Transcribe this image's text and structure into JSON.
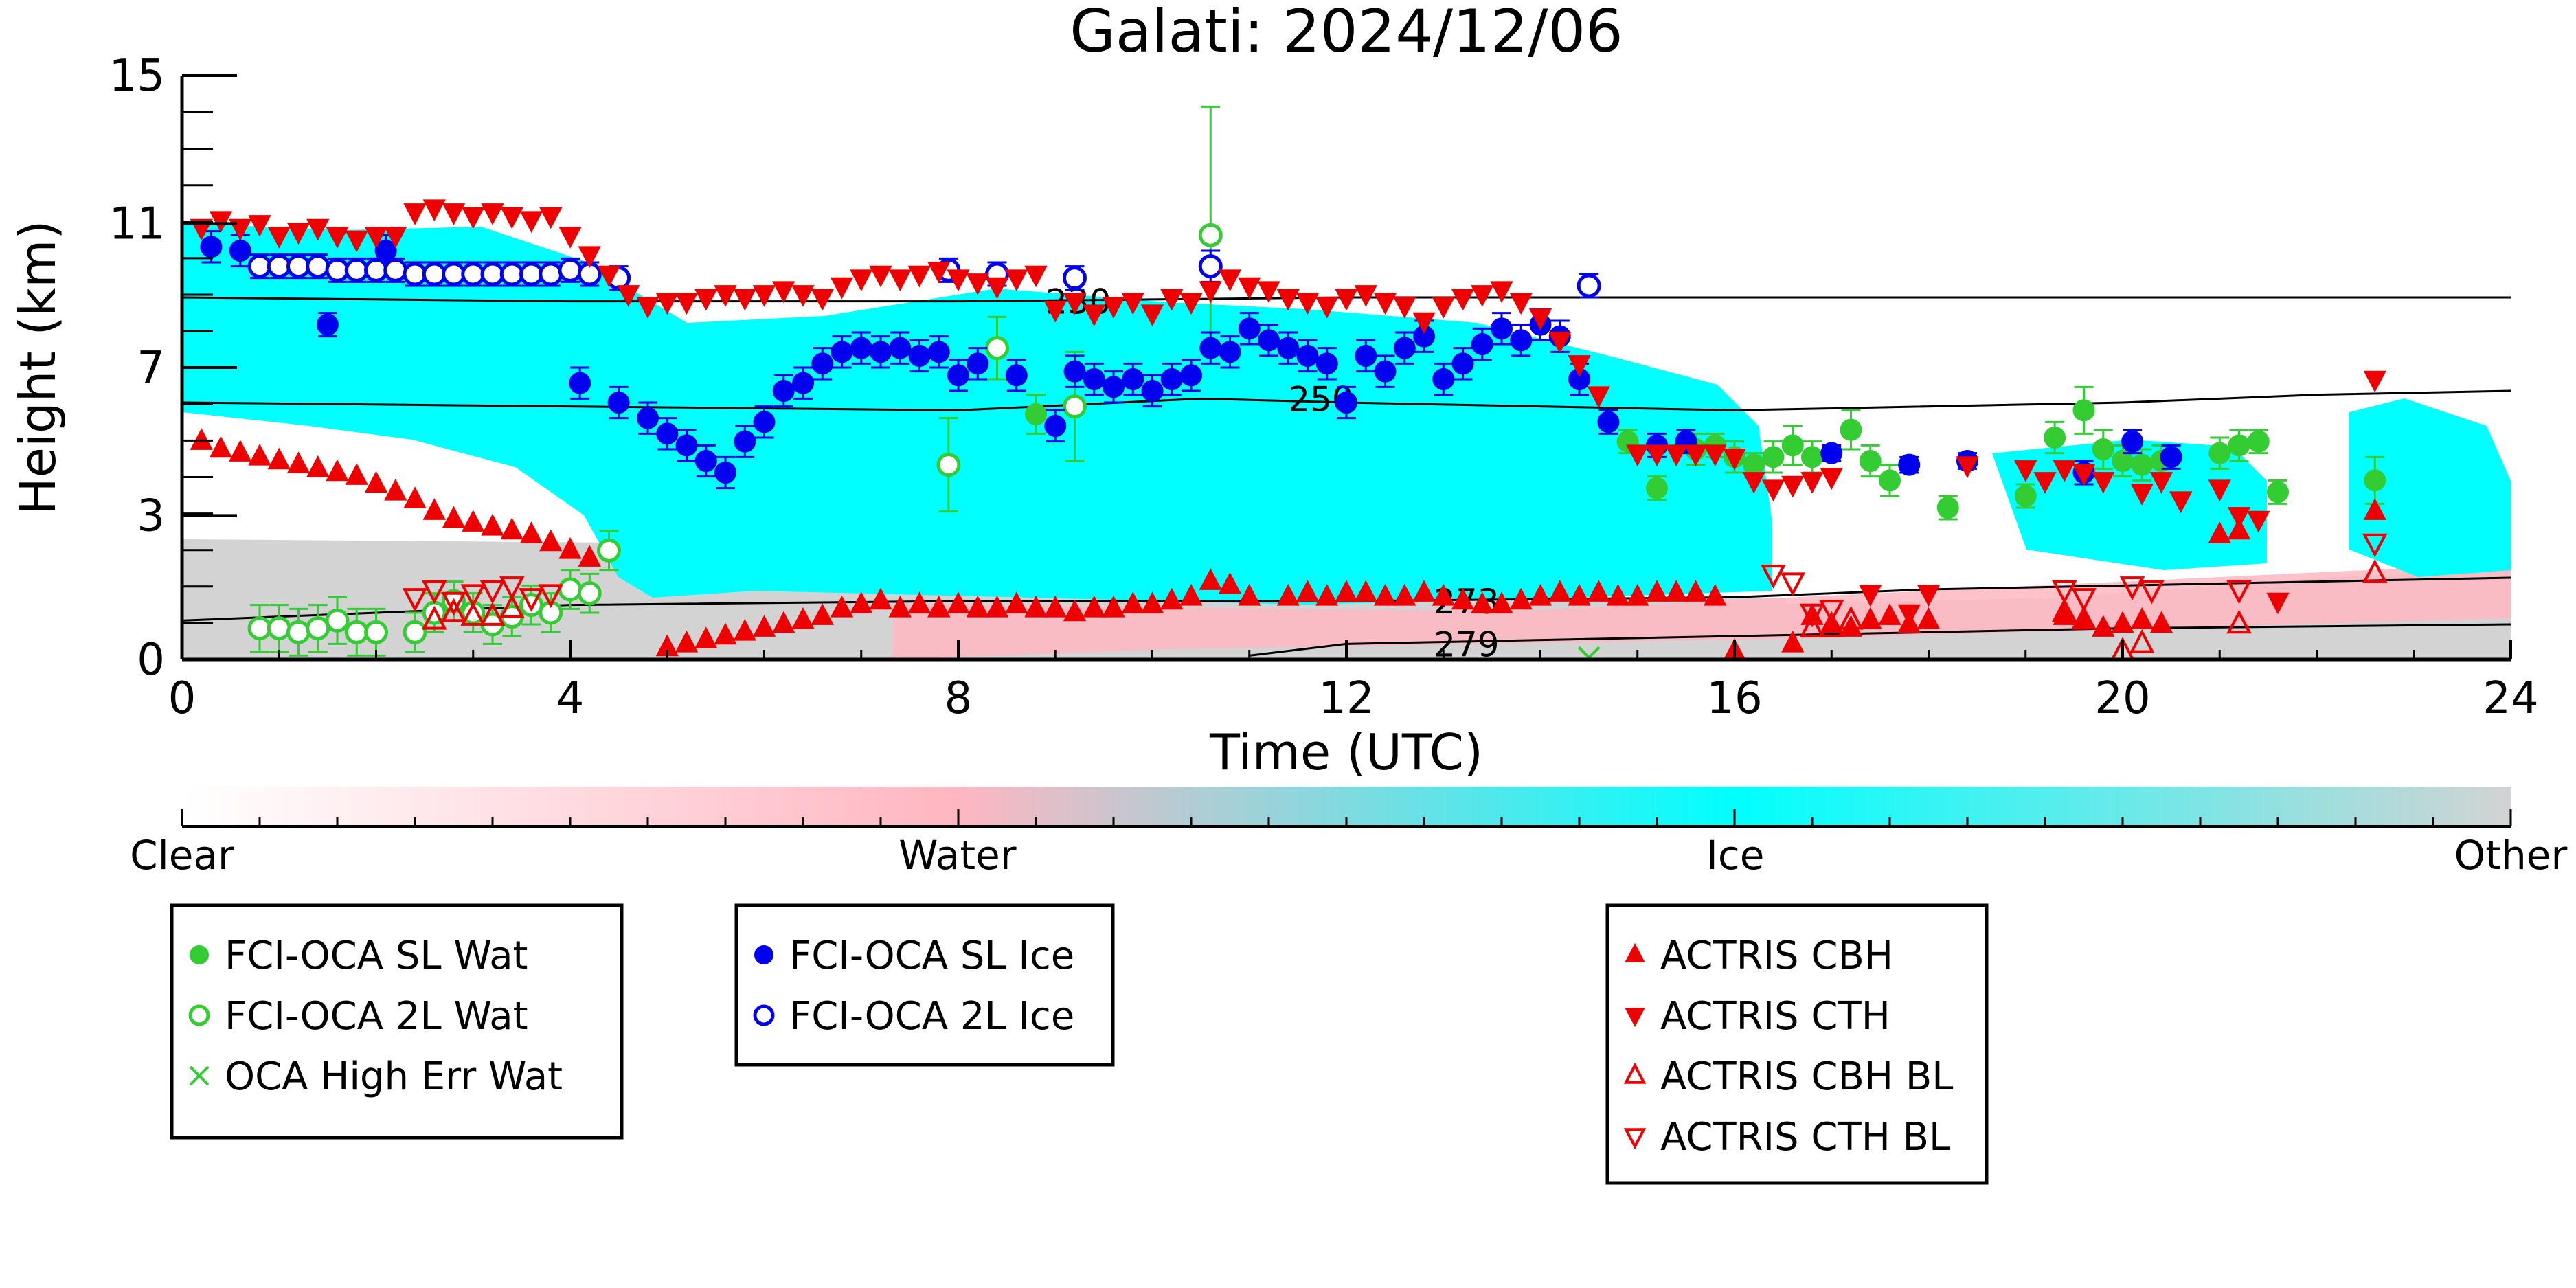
{
  "chart_data": {
    "type": "scatter",
    "title": "Galati: 2024/12/06",
    "xlabel": "Time (UTC)",
    "ylabel": "Height (km)",
    "xlim": [
      0,
      24
    ],
    "ylim": [
      0,
      15
    ],
    "xticks": [
      "0",
      "4",
      "8",
      "12",
      "16",
      "20",
      "24"
    ],
    "xtick_values": [
      0,
      4,
      8,
      12,
      16,
      20,
      24
    ],
    "yticks": [
      "0",
      "3",
      "7",
      "11",
      "15"
    ],
    "ytick_values": [
      0,
      3.7,
      7.5,
      11.2,
      15
    ],
    "grid": false,
    "colors": {
      "clear": "#ffffff",
      "water": "#ffb6c1",
      "ice": "#00ffff",
      "other": "#d3d3d3",
      "sl_wat": "#33cc33",
      "sl_ice": "#0000ee",
      "actris": "#ee0000"
    },
    "colorbar": {
      "labels": [
        "Clear",
        "Water",
        "Ice",
        "Other"
      ],
      "positions": [
        0,
        0.333,
        0.667,
        1.0
      ]
    },
    "contours": [
      {
        "label": "230",
        "x": [
          0,
          4,
          8,
          12,
          16,
          20,
          24
        ],
        "y": [
          9.3,
          9.2,
          9.2,
          9.3,
          9.3,
          9.3,
          9.3
        ]
      },
      {
        "label": "250",
        "x": [
          0,
          4,
          8,
          10.5,
          12,
          16,
          20,
          22,
          24
        ],
        "y": [
          6.6,
          6.5,
          6.4,
          6.7,
          6.6,
          6.4,
          6.6,
          6.8,
          6.9
        ]
      },
      {
        "label": "273",
        "x": [
          0,
          4,
          8,
          12,
          16,
          18,
          20,
          24
        ],
        "y": [
          1.0,
          1.4,
          1.5,
          1.5,
          1.6,
          1.8,
          1.9,
          2.1
        ]
      },
      {
        "label": "279",
        "x": [
          11,
          12,
          16,
          20,
          24
        ],
        "y": [
          0.1,
          0.4,
          0.6,
          0.8,
          0.9
        ]
      }
    ],
    "legend_groups": [
      [
        "FCI-OCA SL Wat",
        "FCI-OCA 2L Wat",
        "OCA High Err Wat"
      ],
      [
        "FCI-OCA SL Ice",
        "FCI-OCA 2L Ice"
      ],
      [
        "ACTRIS CBH",
        "ACTRIS CTH",
        "ACTRIS CBH BL",
        "ACTRIS CTH BL"
      ]
    ],
    "series": [
      {
        "name": "FCI-OCA SL Wat",
        "marker": "filled-circle",
        "color": "#33cc33",
        "x": [
          8.8,
          14.9,
          15.2,
          15.6,
          15.8,
          16.0,
          16.2,
          16.4,
          16.6,
          16.8,
          17.2,
          17.4,
          17.6,
          18.2,
          19.0,
          19.3,
          19.6,
          19.8,
          20.0,
          20.2,
          20.4,
          21.0,
          21.2,
          21.4,
          21.6,
          22.6
        ],
        "y": [
          6.3,
          5.6,
          4.4,
          5.4,
          5.5,
          5.2,
          5.0,
          5.2,
          5.5,
          5.2,
          5.9,
          5.1,
          4.6,
          3.9,
          4.2,
          5.7,
          6.4,
          5.4,
          5.1,
          5.0,
          5.1,
          5.3,
          5.5,
          5.6,
          4.3,
          4.6
        ],
        "yerr": [
          0.5,
          0.3,
          0.3,
          0.4,
          0.3,
          0.4,
          0.3,
          0.4,
          0.5,
          0.4,
          0.5,
          0.4,
          0.4,
          0.3,
          0.3,
          0.4,
          0.6,
          0.5,
          0.4,
          0.4,
          0.4,
          0.4,
          0.4,
          0.3,
          0.3,
          0.6
        ]
      },
      {
        "name": "FCI-OCA 2L Wat",
        "marker": "open-circle",
        "color": "#33cc33",
        "x": [
          0.8,
          1.0,
          1.2,
          1.4,
          1.6,
          1.8,
          2.0,
          2.4,
          2.6,
          2.8,
          3.0,
          3.2,
          3.4,
          3.6,
          3.8,
          4.0,
          4.2,
          4.4,
          7.9,
          8.4,
          9.2,
          10.6
        ],
        "y": [
          0.8,
          0.8,
          0.7,
          0.8,
          1.0,
          0.7,
          0.7,
          0.7,
          1.2,
          1.5,
          1.2,
          0.9,
          1.1,
          1.4,
          1.2,
          1.8,
          1.7,
          2.8,
          5.0,
          8.0,
          6.5,
          10.9
        ],
        "yerr": [
          0.6,
          0.6,
          0.6,
          0.6,
          0.6,
          0.6,
          0.6,
          0.5,
          0.5,
          0.5,
          0.5,
          0.5,
          0.5,
          0.5,
          0.5,
          0.5,
          0.5,
          0.5,
          1.2,
          0.8,
          1.4,
          3.3
        ]
      },
      {
        "name": "OCA High Err Wat",
        "marker": "x",
        "color": "#33cc33",
        "x": [
          14.5
        ],
        "y": [
          0.05
        ],
        "yerr": [
          0
        ]
      },
      {
        "name": "FCI-OCA SL Ice",
        "marker": "filled-circle",
        "color": "#0000ee",
        "x": [
          0.3,
          0.6,
          1.5,
          2.1,
          4.1,
          4.5,
          4.8,
          5.0,
          5.2,
          5.4,
          5.6,
          5.8,
          6.0,
          6.2,
          6.4,
          6.6,
          6.8,
          7.0,
          7.2,
          7.4,
          7.6,
          7.8,
          8.0,
          8.2,
          8.6,
          9.0,
          9.2,
          9.4,
          9.6,
          9.8,
          10.0,
          10.2,
          10.4,
          10.6,
          10.8,
          11.0,
          11.2,
          11.4,
          11.6,
          11.8,
          12.0,
          12.2,
          12.4,
          12.6,
          12.8,
          13.0,
          13.2,
          13.4,
          13.6,
          13.8,
          14.0,
          14.2,
          14.4,
          14.7,
          15.2,
          15.5,
          17.0,
          17.8,
          18.4,
          19.6,
          20.1,
          20.5
        ],
        "y": [
          10.6,
          10.5,
          8.6,
          10.5,
          7.1,
          6.6,
          6.2,
          5.8,
          5.5,
          5.1,
          4.8,
          5.6,
          6.1,
          6.9,
          7.1,
          7.6,
          7.9,
          8.0,
          7.9,
          8.0,
          7.8,
          7.9,
          7.3,
          7.6,
          7.3,
          6.0,
          7.4,
          7.2,
          7.0,
          7.2,
          6.9,
          7.2,
          7.3,
          8.0,
          7.9,
          8.5,
          8.2,
          8.0,
          7.8,
          7.6,
          6.6,
          7.8,
          7.4,
          8.0,
          8.3,
          7.2,
          7.6,
          8.1,
          8.5,
          8.2,
          8.6,
          8.3,
          7.2,
          6.1,
          5.5,
          5.6,
          5.3,
          5.0,
          5.1,
          4.8,
          5.6,
          5.2
        ],
        "yerr": [
          0.4,
          0.4,
          0.3,
          0.4,
          0.4,
          0.4,
          0.4,
          0.4,
          0.4,
          0.4,
          0.4,
          0.4,
          0.4,
          0.4,
          0.4,
          0.4,
          0.4,
          0.4,
          0.4,
          0.4,
          0.4,
          0.4,
          0.4,
          0.4,
          0.4,
          0.4,
          0.4,
          0.4,
          0.4,
          0.4,
          0.4,
          0.4,
          0.4,
          0.4,
          0.4,
          0.4,
          0.4,
          0.4,
          0.4,
          0.4,
          0.4,
          0.4,
          0.4,
          0.4,
          0.4,
          0.4,
          0.4,
          0.4,
          0.4,
          0.4,
          0.4,
          0.4,
          0.4,
          0.3,
          0.3,
          0.3,
          0.2,
          0.2,
          0.2,
          0.3,
          0.3,
          0.3
        ]
      },
      {
        "name": "FCI-OCA 2L Ice",
        "marker": "open-circle",
        "color": "#0000ee",
        "x": [
          0.8,
          1.0,
          1.2,
          1.4,
          1.6,
          1.8,
          2.0,
          2.2,
          2.4,
          2.6,
          2.8,
          3.0,
          3.2,
          3.4,
          3.6,
          3.8,
          4.0,
          4.2,
          4.5,
          7.9,
          8.4,
          9.2,
          10.6,
          14.5
        ],
        "y": [
          10.1,
          10.1,
          10.1,
          10.1,
          10.0,
          10.0,
          10.0,
          10.0,
          9.9,
          9.9,
          9.9,
          9.9,
          9.9,
          9.9,
          9.9,
          9.9,
          10.0,
          9.9,
          9.8,
          10.0,
          9.9,
          9.8,
          10.1,
          9.6
        ],
        "yerr": [
          0.3,
          0.3,
          0.3,
          0.3,
          0.3,
          0.3,
          0.3,
          0.3,
          0.3,
          0.3,
          0.3,
          0.3,
          0.3,
          0.3,
          0.3,
          0.3,
          0.3,
          0.3,
          0.3,
          0.3,
          0.3,
          0.3,
          0.4,
          0.3
        ]
      },
      {
        "name": "ACTRIS CBH",
        "marker": "triangle-up",
        "color": "#ee0000",
        "x": [
          0.2,
          0.4,
          0.6,
          0.8,
          1.0,
          1.2,
          1.4,
          1.6,
          1.8,
          2.0,
          2.2,
          2.4,
          2.6,
          2.8,
          3.0,
          3.2,
          3.4,
          3.6,
          3.8,
          4.0,
          4.2,
          5.0,
          5.2,
          5.4,
          5.6,
          5.8,
          6.0,
          6.2,
          6.4,
          6.6,
          6.8,
          7.0,
          7.2,
          7.4,
          7.6,
          7.8,
          8.0,
          8.2,
          8.4,
          8.6,
          8.8,
          9.0,
          9.2,
          9.4,
          9.6,
          9.8,
          10.0,
          10.2,
          10.4,
          10.6,
          10.8,
          11.0,
          11.4,
          11.6,
          11.8,
          12.0,
          12.2,
          12.4,
          12.6,
          12.8,
          13.0,
          13.2,
          13.4,
          13.6,
          13.8,
          14.0,
          14.2,
          14.4,
          14.6,
          14.8,
          15.0,
          15.2,
          15.4,
          15.6,
          15.8,
          16.0,
          16.6,
          16.8,
          17.0,
          17.2,
          17.4,
          17.6,
          17.8,
          18.0,
          19.4,
          19.6,
          19.8,
          20.0,
          20.2,
          20.4,
          21.0,
          21.2,
          22.6
        ],
        "y": [
          5.6,
          5.4,
          5.3,
          5.2,
          5.1,
          5.0,
          4.9,
          4.8,
          4.7,
          4.5,
          4.3,
          4.1,
          3.8,
          3.6,
          3.5,
          3.4,
          3.3,
          3.2,
          3.0,
          2.8,
          2.6,
          0.3,
          0.4,
          0.5,
          0.6,
          0.7,
          0.8,
          0.9,
          1.0,
          1.1,
          1.3,
          1.4,
          1.5,
          1.3,
          1.4,
          1.3,
          1.4,
          1.3,
          1.3,
          1.4,
          1.3,
          1.3,
          1.2,
          1.3,
          1.3,
          1.4,
          1.4,
          1.5,
          1.6,
          2.0,
          1.9,
          1.6,
          1.6,
          1.7,
          1.6,
          1.7,
          1.7,
          1.6,
          1.6,
          1.7,
          1.6,
          1.5,
          1.4,
          1.4,
          1.5,
          1.6,
          1.7,
          1.6,
          1.7,
          1.6,
          1.6,
          1.7,
          1.7,
          1.7,
          1.6,
          0.2,
          0.4,
          1.1,
          0.9,
          0.8,
          1.0,
          1.1,
          0.9,
          1.0,
          1.1,
          1.0,
          0.8,
          0.9,
          1.0,
          0.9,
          3.2,
          3.3,
          3.8
        ]
      },
      {
        "name": "ACTRIS CTH",
        "marker": "triangle-down",
        "color": "#ee0000",
        "x": [
          0.2,
          0.4,
          0.6,
          0.8,
          1.0,
          1.2,
          1.4,
          1.6,
          1.8,
          2.0,
          2.2,
          2.4,
          2.6,
          2.8,
          3.0,
          3.2,
          3.4,
          3.6,
          3.8,
          4.0,
          4.2,
          4.4,
          4.6,
          4.8,
          5.0,
          5.2,
          5.4,
          5.6,
          5.8,
          6.0,
          6.2,
          6.4,
          6.6,
          6.8,
          7.0,
          7.2,
          7.4,
          7.6,
          7.8,
          8.0,
          8.2,
          8.4,
          8.6,
          8.8,
          9.0,
          9.2,
          9.4,
          9.6,
          9.8,
          10.0,
          10.2,
          10.4,
          10.6,
          10.8,
          11.0,
          11.2,
          11.4,
          11.6,
          11.8,
          12.0,
          12.2,
          12.4,
          12.6,
          12.8,
          13.0,
          13.2,
          13.4,
          13.6,
          13.8,
          14.0,
          14.2,
          14.4,
          14.6,
          15.0,
          15.2,
          15.4,
          15.6,
          15.8,
          16.0,
          16.2,
          16.4,
          16.6,
          16.8,
          17.0,
          17.4,
          17.8,
          18.0,
          18.4,
          19.0,
          19.2,
          19.4,
          19.6,
          19.8,
          20.2,
          20.4,
          20.6,
          21.0,
          21.2,
          21.4,
          21.6,
          22.6
        ],
        "y": [
          11.1,
          11.3,
          11.1,
          11.2,
          10.9,
          11.0,
          11.1,
          10.9,
          10.8,
          10.9,
          10.9,
          11.5,
          11.6,
          11.5,
          11.4,
          11.5,
          11.4,
          11.3,
          11.4,
          10.9,
          10.4,
          9.9,
          9.4,
          9.1,
          9.2,
          9.2,
          9.3,
          9.4,
          9.3,
          9.4,
          9.5,
          9.4,
          9.3,
          9.6,
          9.8,
          9.9,
          9.8,
          9.9,
          10.0,
          9.8,
          9.7,
          9.6,
          9.8,
          9.9,
          9.0,
          9.2,
          8.9,
          9.1,
          9.2,
          8.9,
          9.3,
          9.2,
          9.5,
          9.8,
          9.6,
          9.5,
          9.3,
          9.2,
          9.1,
          9.3,
          9.4,
          9.2,
          9.1,
          8.7,
          9.1,
          9.3,
          9.4,
          9.5,
          9.2,
          8.8,
          8.2,
          7.6,
          6.8,
          5.3,
          5.3,
          5.3,
          5.3,
          5.3,
          5.2,
          4.6,
          4.4,
          4.5,
          4.6,
          4.7,
          1.7,
          1.2,
          1.7,
          5.0,
          4.9,
          4.6,
          4.9,
          4.8,
          4.6,
          4.3,
          4.6,
          4.1,
          4.4,
          3.7,
          3.6,
          1.5,
          7.2
        ]
      },
      {
        "name": "ACTRIS CBH BL",
        "marker": "open-triangle-up",
        "color": "#ee0000",
        "x": [
          2.6,
          2.8,
          3.0,
          3.2,
          3.4,
          16.8,
          17.0,
          17.2,
          19.4,
          19.6,
          20.0,
          20.2,
          21.2,
          22.6
        ],
        "y": [
          1.0,
          1.2,
          1.1,
          1.1,
          1.3,
          0.8,
          0.8,
          1.0,
          1.2,
          1.0,
          0.2,
          0.4,
          0.9,
          2.2
        ],
        "yerr": [
          0,
          0,
          0,
          0,
          0,
          0,
          0,
          0,
          0,
          0,
          0,
          0,
          0,
          0
        ]
      },
      {
        "name": "ACTRIS CTH BL",
        "marker": "open-triangle-down",
        "color": "#ee0000",
        "x": [
          2.4,
          2.6,
          2.8,
          3.0,
          3.2,
          3.4,
          3.6,
          3.8,
          16.4,
          16.6,
          16.8,
          17.0,
          19.4,
          19.6,
          20.1,
          20.3,
          21.2,
          22.6
        ],
        "y": [
          1.6,
          1.8,
          1.5,
          1.7,
          1.8,
          1.9,
          1.6,
          1.7,
          2.2,
          2.0,
          1.2,
          1.3,
          1.8,
          1.6,
          1.9,
          1.8,
          1.8,
          3.0
        ],
        "yerr": [
          0,
          0,
          0,
          0,
          0,
          0,
          0,
          0,
          0,
          0,
          0,
          0,
          0,
          0,
          0,
          0,
          0,
          0
        ]
      }
    ]
  }
}
